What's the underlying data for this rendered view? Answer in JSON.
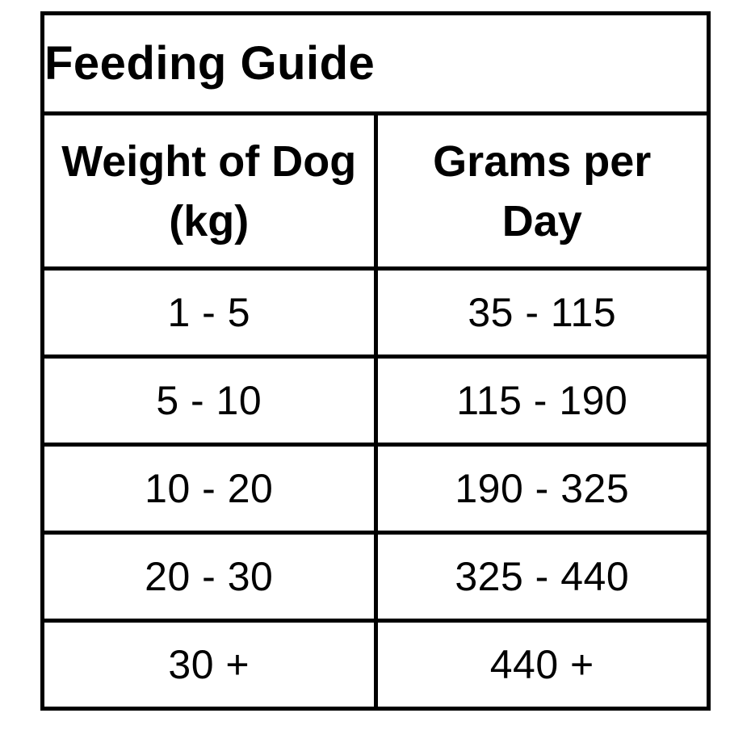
{
  "colors": {
    "background": "#ffffff",
    "border": "#000000",
    "text": "#000000"
  },
  "table": {
    "title": "Feeding Guide",
    "headers": [
      {
        "full": "Weight of Dog (kg)",
        "lines": [
          "Weight of Dog",
          "(kg)"
        ]
      },
      {
        "full": "Grams per Day",
        "lines": [
          "Grams per",
          "Day"
        ]
      }
    ]
  },
  "chart_data": {
    "type": "table",
    "title": "Feeding Guide",
    "columns": [
      "Weight of Dog (kg)",
      "Grams per Day"
    ],
    "rows": [
      [
        "1 - 5",
        "35 - 115"
      ],
      [
        "5 - 10",
        "115 - 190"
      ],
      [
        "10 - 20",
        "190 - 325"
      ],
      [
        "20 - 30",
        "325 - 440"
      ],
      [
        "30 +",
        "440 +"
      ]
    ]
  }
}
